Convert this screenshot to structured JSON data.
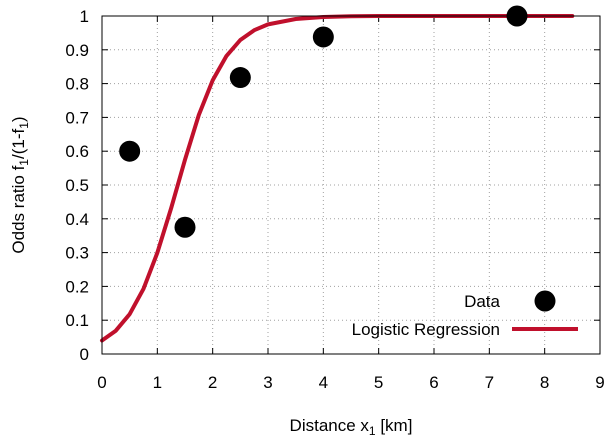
{
  "chart_data": {
    "type": "scatter",
    "title": "",
    "xlabel": "Distance x",
    "xlabel_sub": "1",
    "xlabel_unit": " [km]",
    "ylabel": "Odds ratio f",
    "ylabel_sub1": "1",
    "ylabel_mid": "/(1-f",
    "ylabel_sub2": "1",
    "ylabel_end": ")",
    "xlim": [
      0,
      9
    ],
    "ylim": [
      0,
      1
    ],
    "xticks": [
      0,
      1,
      2,
      3,
      4,
      5,
      6,
      7,
      8,
      9
    ],
    "yticks": [
      0,
      0.1,
      0.2,
      0.3,
      0.4,
      0.5,
      0.6,
      0.7,
      0.8,
      0.9,
      1
    ],
    "grid": true,
    "legend_position": "bottom-right",
    "series": [
      {
        "name": "Data",
        "kind": "points",
        "color": "#000000",
        "x": [
          0.5,
          1.5,
          2.5,
          4.0,
          7.5
        ],
        "y": [
          0.6,
          0.375,
          0.818,
          0.938,
          1.0
        ]
      },
      {
        "name": "Logistic Regression",
        "kind": "line",
        "color": "#c0102c",
        "x": [
          0,
          0.25,
          0.5,
          0.75,
          1.0,
          1.25,
          1.5,
          1.75,
          2.0,
          2.25,
          2.5,
          2.75,
          3.0,
          3.5,
          4.0,
          4.5,
          5.0,
          6.0,
          7.0,
          8.0,
          8.5
        ],
        "y": [
          0.04,
          0.069,
          0.118,
          0.193,
          0.299,
          0.432,
          0.575,
          0.707,
          0.81,
          0.882,
          0.929,
          0.958,
          0.975,
          0.991,
          0.997,
          0.999,
          1.0,
          1.0,
          1.0,
          1.0,
          1.0
        ]
      }
    ]
  }
}
